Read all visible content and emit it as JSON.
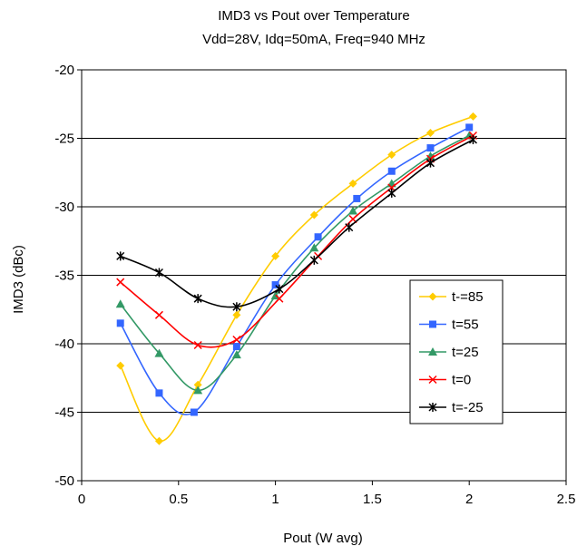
{
  "chart_data": {
    "type": "line",
    "title": "IMD3 vs Pout over Temperature",
    "subtitle": "Vdd=28V, Idq=50mA, Freq=940 MHz",
    "xlabel": "Pout (W avg)",
    "ylabel": "IMD3 (dBc)",
    "xlim": [
      0,
      2.5
    ],
    "ylim": [
      -50,
      -20
    ],
    "xticks": [
      0,
      0.5,
      1,
      1.5,
      2,
      2.5
    ],
    "xtick_labels": [
      "0",
      "0.5",
      "1",
      "1.5",
      "2",
      "2.5"
    ],
    "yticks": [
      -50,
      -45,
      -40,
      -35,
      -30,
      -25,
      -20
    ],
    "ytick_labels": [
      "-50",
      "-45",
      "-40",
      "-35",
      "-30",
      "-25",
      "-20"
    ],
    "grid": "horizontal",
    "legend_position": "right",
    "series": [
      {
        "name": "t-=85",
        "color": "#FFCC00",
        "marker": "diamond",
        "x": [
          0.2,
          0.4,
          0.6,
          0.8,
          1.0,
          1.2,
          1.4,
          1.6,
          1.8,
          2.02
        ],
        "y": [
          -41.6,
          -47.1,
          -43.0,
          -37.9,
          -33.6,
          -30.6,
          -28.3,
          -26.2,
          -24.6,
          -23.4
        ]
      },
      {
        "name": "t=55",
        "color": "#3366FF",
        "marker": "square",
        "x": [
          0.2,
          0.4,
          0.58,
          0.8,
          1.0,
          1.22,
          1.42,
          1.6,
          1.8,
          2.0
        ],
        "y": [
          -38.5,
          -43.6,
          -45.0,
          -40.2,
          -35.7,
          -32.2,
          -29.4,
          -27.4,
          -25.7,
          -24.2
        ]
      },
      {
        "name": "t=25",
        "color": "#339966",
        "marker": "triangle",
        "x": [
          0.2,
          0.4,
          0.6,
          0.8,
          1.0,
          1.2,
          1.4,
          1.6,
          1.8,
          2.0
        ],
        "y": [
          -37.1,
          -40.7,
          -43.4,
          -40.8,
          -36.5,
          -33.0,
          -30.3,
          -28.3,
          -26.3,
          -24.8
        ]
      },
      {
        "name": "t=0",
        "color": "#FF0000",
        "marker": "x",
        "x": [
          0.2,
          0.4,
          0.6,
          0.8,
          1.02,
          1.22,
          1.4,
          1.6,
          1.8,
          2.02
        ],
        "y": [
          -35.5,
          -37.9,
          -40.1,
          -39.7,
          -36.7,
          -33.6,
          -30.9,
          -28.6,
          -26.5,
          -24.8
        ]
      },
      {
        "name": "t=-25",
        "color": "#000000",
        "marker": "star",
        "x": [
          0.2,
          0.4,
          0.6,
          0.8,
          1.02,
          1.2,
          1.38,
          1.6,
          1.8,
          2.02
        ],
        "y": [
          -33.6,
          -34.8,
          -36.7,
          -37.3,
          -36.0,
          -33.9,
          -31.5,
          -29.0,
          -26.8,
          -25.1
        ]
      }
    ]
  }
}
